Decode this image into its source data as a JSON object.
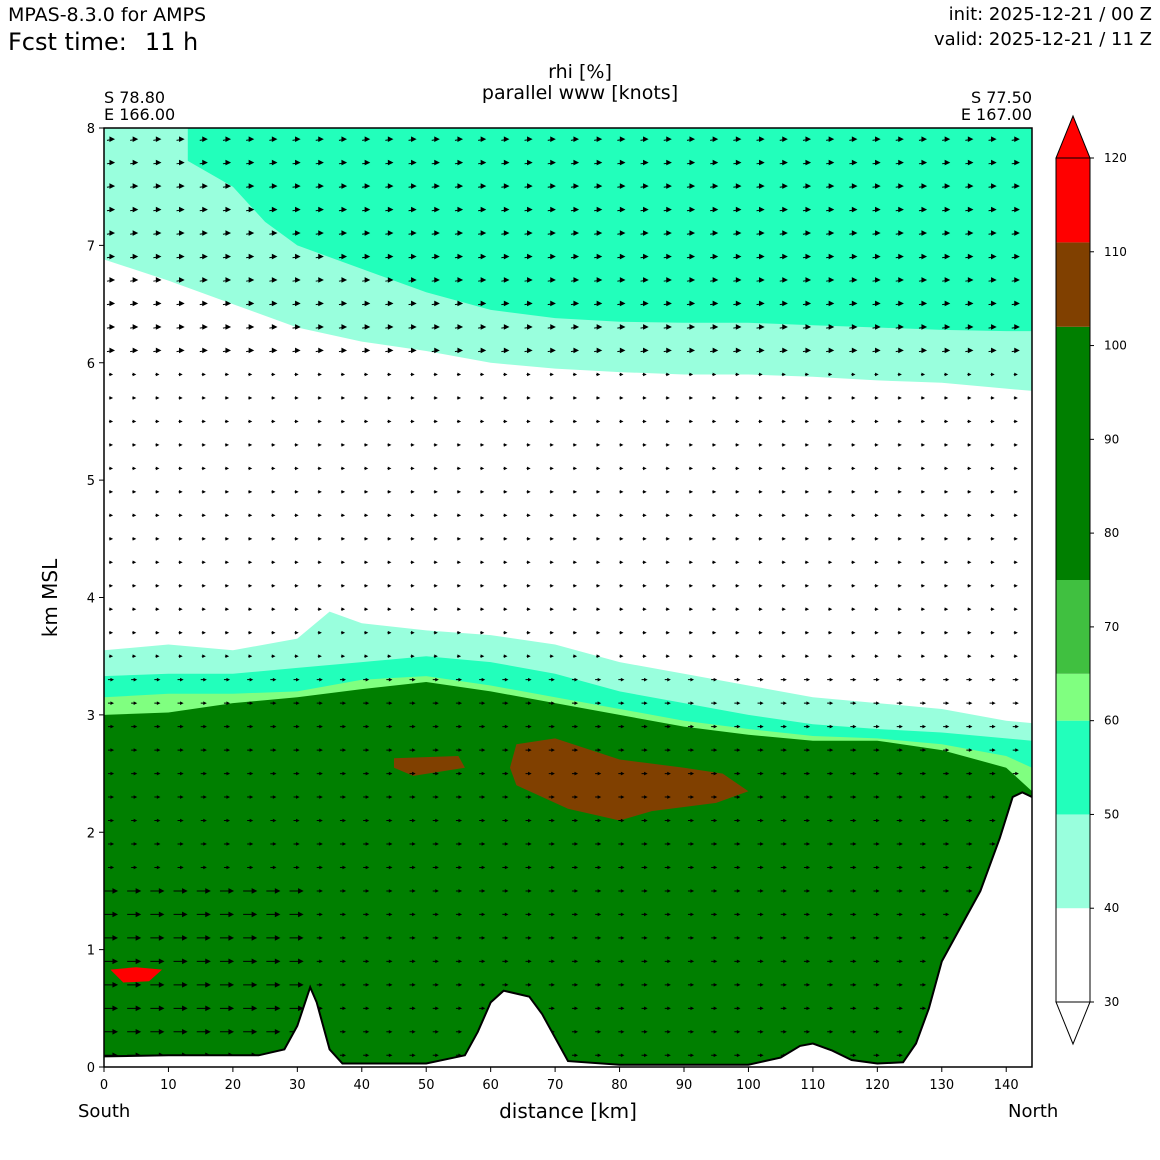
{
  "header": {
    "model": "MPAS-8.3.0 for AMPS",
    "fcst_label": "Fcst time:",
    "fcst_value": "11 h",
    "init": "init: 2025-12-21 / 00 Z",
    "valid": "valid: 2025-12-21 / 11 Z"
  },
  "chart_data": {
    "type": "contour cross-section",
    "title": "rhi [%]",
    "subtitle": "parallel www [knots]",
    "xlabel": "distance [km]",
    "ylabel": "km MSL",
    "xlim": [
      0,
      144
    ],
    "ylim": [
      0,
      8
    ],
    "x_ticks": [
      "0",
      "10",
      "20",
      "30",
      "40",
      "50",
      "60",
      "70",
      "80",
      "90",
      "100",
      "110",
      "120",
      "130",
      "140"
    ],
    "y_ticks": [
      "0",
      "1",
      "2",
      "3",
      "4",
      "5",
      "6",
      "7",
      "8"
    ],
    "start_point": {
      "lat": "S 78.80",
      "lon": "E 166.00"
    },
    "end_point": {
      "lat": "S 77.50",
      "lon": "E 167.00"
    },
    "left_end_label": "South",
    "right_end_label": "North",
    "colorbar": {
      "levels": [
        30,
        40,
        50,
        60,
        70,
        80,
        90,
        100,
        110,
        120
      ],
      "tick_labels": [
        "30",
        "40",
        "50",
        "60",
        "70",
        "80",
        "90",
        "100",
        "110",
        "120"
      ],
      "colors": [
        "#ffffff",
        "#99ffdd",
        "#22ffbb",
        "#80ff80",
        "#40c040",
        "#007f00",
        "#804000",
        "#ff0000"
      ],
      "color_bounds": [
        [
          30,
          40
        ],
        [
          40,
          50
        ],
        [
          50,
          60
        ],
        [
          60,
          65
        ],
        [
          65,
          75
        ],
        [
          75,
          102
        ],
        [
          102,
          111
        ],
        [
          111,
          120
        ]
      ],
      "extend": "both"
    },
    "terrain_km": [
      [
        0,
        0.09
      ],
      [
        10,
        0.1
      ],
      [
        24,
        0.1
      ],
      [
        28,
        0.15
      ],
      [
        30,
        0.35
      ],
      [
        32,
        0.68
      ],
      [
        33,
        0.55
      ],
      [
        35,
        0.15
      ],
      [
        37,
        0.03
      ],
      [
        42,
        0.03
      ],
      [
        50,
        0.03
      ],
      [
        56,
        0.1
      ],
      [
        58,
        0.3
      ],
      [
        60,
        0.55
      ],
      [
        62,
        0.65
      ],
      [
        66,
        0.6
      ],
      [
        68,
        0.45
      ],
      [
        70,
        0.25
      ],
      [
        72,
        0.05
      ],
      [
        80,
        0.02
      ],
      [
        100,
        0.02
      ],
      [
        105,
        0.08
      ],
      [
        108,
        0.18
      ],
      [
        110,
        0.2
      ],
      [
        113,
        0.14
      ],
      [
        116,
        0.06
      ],
      [
        120,
        0.03
      ],
      [
        124,
        0.04
      ],
      [
        126,
        0.2
      ],
      [
        128,
        0.5
      ],
      [
        130,
        0.9
      ],
      [
        133,
        1.2
      ],
      [
        136,
        1.5
      ],
      [
        139,
        1.95
      ],
      [
        141,
        2.3
      ],
      [
        142.5,
        2.34
      ],
      [
        144,
        2.3
      ]
    ],
    "rhi_regions": [
      {
        "level": 40,
        "top_km": [
          [
            0,
            6.88
          ],
          [
            10,
            6.7
          ],
          [
            20,
            6.5
          ],
          [
            30,
            6.3
          ],
          [
            40,
            6.18
          ],
          [
            50,
            6.1
          ],
          [
            60,
            6.0
          ],
          [
            70,
            5.95
          ],
          [
            80,
            5.92
          ],
          [
            90,
            5.9
          ],
          [
            100,
            5.9
          ],
          [
            110,
            5.88
          ],
          [
            120,
            5.85
          ],
          [
            130,
            5.83
          ],
          [
            140,
            5.78
          ],
          [
            144,
            5.76
          ]
        ],
        "top_upper_km": 8.0
      },
      {
        "level": 50,
        "upper_band_km": [
          [
            13,
            7.72
          ],
          [
            20,
            7.5
          ],
          [
            25,
            7.2
          ],
          [
            30,
            7.0
          ],
          [
            40,
            6.8
          ],
          [
            50,
            6.6
          ],
          [
            60,
            6.45
          ],
          [
            70,
            6.38
          ],
          [
            80,
            6.35
          ],
          [
            90,
            6.34
          ],
          [
            100,
            6.34
          ],
          [
            110,
            6.32
          ],
          [
            120,
            6.3
          ],
          [
            130,
            6.28
          ],
          [
            140,
            6.27
          ],
          [
            144,
            6.27
          ]
        ]
      },
      {
        "level": 40,
        "band_km": [
          [
            0,
            3.55
          ],
          [
            10,
            3.6
          ],
          [
            20,
            3.55
          ],
          [
            30,
            3.65
          ],
          [
            35,
            3.88
          ],
          [
            40,
            3.78
          ],
          [
            50,
            3.72
          ],
          [
            60,
            3.68
          ],
          [
            70,
            3.6
          ],
          [
            80,
            3.45
          ],
          [
            90,
            3.35
          ],
          [
            100,
            3.25
          ],
          [
            110,
            3.15
          ],
          [
            120,
            3.1
          ],
          [
            130,
            3.05
          ],
          [
            140,
            2.95
          ],
          [
            144,
            2.93
          ]
        ]
      },
      {
        "level": 50,
        "band_km": [
          [
            0,
            3.33
          ],
          [
            10,
            3.35
          ],
          [
            20,
            3.35
          ],
          [
            30,
            3.4
          ],
          [
            40,
            3.45
          ],
          [
            50,
            3.5
          ],
          [
            60,
            3.45
          ],
          [
            70,
            3.35
          ],
          [
            80,
            3.2
          ],
          [
            90,
            3.1
          ],
          [
            100,
            3.0
          ],
          [
            110,
            2.92
          ],
          [
            120,
            2.88
          ],
          [
            130,
            2.85
          ],
          [
            140,
            2.8
          ],
          [
            144,
            2.78
          ]
        ]
      },
      {
        "level": 60,
        "band_km": [
          [
            0,
            3.15
          ],
          [
            10,
            3.18
          ],
          [
            20,
            3.18
          ],
          [
            30,
            3.2
          ],
          [
            40,
            3.3
          ],
          [
            50,
            3.33
          ],
          [
            60,
            3.25
          ],
          [
            70,
            3.15
          ],
          [
            80,
            3.05
          ],
          [
            90,
            2.95
          ],
          [
            100,
            2.88
          ],
          [
            110,
            2.82
          ],
          [
            120,
            2.8
          ],
          [
            130,
            2.75
          ],
          [
            140,
            2.65
          ],
          [
            144,
            2.55
          ]
        ]
      },
      {
        "level": 80,
        "band_km": [
          [
            0,
            3.0
          ],
          [
            10,
            3.02
          ],
          [
            20,
            3.1
          ],
          [
            30,
            3.15
          ],
          [
            40,
            3.22
          ],
          [
            50,
            3.28
          ],
          [
            60,
            3.2
          ],
          [
            70,
            3.1
          ],
          [
            80,
            3.0
          ],
          [
            90,
            2.9
          ],
          [
            100,
            2.83
          ],
          [
            110,
            2.78
          ],
          [
            120,
            2.78
          ],
          [
            130,
            2.7
          ],
          [
            140,
            2.55
          ],
          [
            144,
            2.35
          ]
        ]
      },
      {
        "level": 110,
        "blob_km": [
          [
            64,
            2.75
          ],
          [
            70,
            2.8
          ],
          [
            80,
            2.62
          ],
          [
            90,
            2.55
          ],
          [
            96,
            2.5
          ],
          [
            100,
            2.35
          ],
          [
            95,
            2.25
          ],
          [
            85,
            2.18
          ],
          [
            80,
            2.1
          ],
          [
            72,
            2.2
          ],
          [
            64,
            2.4
          ],
          [
            63,
            2.55
          ]
        ]
      },
      {
        "level": 110,
        "blob_km": [
          [
            45,
            2.63
          ],
          [
            55,
            2.65
          ],
          [
            56,
            2.55
          ],
          [
            48,
            2.48
          ],
          [
            45,
            2.55
          ]
        ]
      },
      {
        "level": 120,
        "blob_km": [
          [
            1,
            0.83
          ],
          [
            5,
            0.85
          ],
          [
            9,
            0.83
          ],
          [
            7,
            0.73
          ],
          [
            3,
            0.72
          ]
        ]
      }
    ]
  }
}
